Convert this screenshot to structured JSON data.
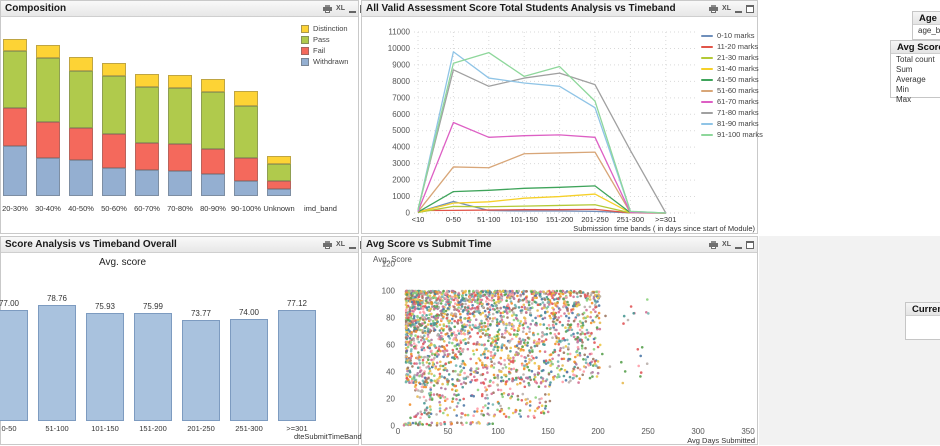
{
  "panels": {
    "composition": {
      "title": "Composition",
      "xlabel": "imd_band",
      "legend": [
        {
          "label": "Distinction",
          "color": "#fdd335"
        },
        {
          "label": "Pass",
          "color": "#b0ca4c"
        },
        {
          "label": "Fail",
          "color": "#f4695c"
        },
        {
          "label": "Withdrawn",
          "color": "#94afd1"
        }
      ]
    },
    "timeband": {
      "title": "All Valid Assessment Score Total Students Analysis vs Timeband",
      "xlabel": "Submission time bands ( in days since start of Module)"
    },
    "score_timeband": {
      "title": "Score Analysis vs Timeband Overall",
      "ylabel": "Avg. score",
      "xlabel": "dteSubmitTimeBand"
    },
    "scatter": {
      "title": "Avg Score vs Submit Time",
      "ylabel": "Avg. Score",
      "xlabel": "Avg Days Submitted"
    },
    "caption_icons": {
      "excel": "XL"
    }
  },
  "sidebar": {
    "age_band": {
      "title": "Age Band",
      "items": [
        "age_band"
      ]
    },
    "avg_score": {
      "title": "Avg Score",
      "items": [
        "Total count",
        "Sum",
        "Average",
        "Min",
        "Max"
      ]
    },
    "current_selections": {
      "title": "Current Selections"
    }
  },
  "chart_data": [
    {
      "id": "composition",
      "type": "bar",
      "stacked": true,
      "title": "Composition",
      "xlabel": "imd_band",
      "categories": [
        "20-30%",
        "30-40%",
        "40-50%",
        "50-60%",
        "60-70%",
        "70-80%",
        "80-90%",
        "90-100%",
        "Unknown"
      ],
      "series": [
        {
          "name": "Withdrawn",
          "color": "#94afd1",
          "values": [
            50,
            38,
            36,
            28,
            26,
            25,
            22,
            15,
            7
          ]
        },
        {
          "name": "Fail",
          "color": "#f4695c",
          "values": [
            38,
            36,
            32,
            34,
            27,
            27,
            25,
            23,
            8
          ]
        },
        {
          "name": "Pass",
          "color": "#b0ca4c",
          "values": [
            57,
            64,
            57,
            58,
            56,
            56,
            57,
            52,
            17
          ]
        },
        {
          "name": "Distinction",
          "color": "#fdd335",
          "values": [
            12,
            13,
            14,
            13,
            13,
            13,
            13,
            15,
            8
          ]
        }
      ],
      "value_units": "relative segment size (no value axis shown)",
      "legend_position": "top-right"
    },
    {
      "id": "timeband-lines",
      "type": "line",
      "title": "All Valid Assessment Score Total Students Analysis vs Timeband",
      "xlabel": "Submission time bands ( in days since start of Module)",
      "x": [
        "<10",
        "0-50",
        "51-100",
        "101-150",
        "151-200",
        "201-250",
        "251-300",
        ">=301"
      ],
      "ylim": [
        0,
        11000
      ],
      "ytick_step": 1000,
      "grid": true,
      "legend_position": "right",
      "series": [
        {
          "name": "0-10 marks",
          "color": "#6f8fbb",
          "values": [
            50,
            700,
            150,
            120,
            120,
            100,
            10,
            0
          ]
        },
        {
          "name": "11-20 marks",
          "color": "#e15549",
          "values": [
            150,
            160,
            180,
            200,
            200,
            220,
            10,
            0
          ]
        },
        {
          "name": "21-30 marks",
          "color": "#b3c936",
          "values": [
            30,
            400,
            380,
            420,
            460,
            500,
            10,
            0
          ]
        },
        {
          "name": "31-40 marks",
          "color": "#f6d029",
          "values": [
            50,
            600,
            680,
            900,
            1000,
            1150,
            10,
            0
          ]
        },
        {
          "name": "41-50 marks",
          "color": "#3fa45b",
          "values": [
            60,
            1300,
            1380,
            1500,
            1560,
            1650,
            15,
            0
          ]
        },
        {
          "name": "51-60 marks",
          "color": "#d8a678",
          "values": [
            80,
            2800,
            2750,
            3600,
            3650,
            3700,
            20,
            0
          ]
        },
        {
          "name": "61-70 marks",
          "color": "#dd5fc4",
          "values": [
            100,
            5500,
            4600,
            4700,
            4750,
            4600,
            30,
            0
          ]
        },
        {
          "name": "71-80 marks",
          "color": "#a0a0a0",
          "values": [
            200,
            8700,
            7700,
            8200,
            8500,
            7800,
            3800,
            0
          ]
        },
        {
          "name": "81-90 marks",
          "color": "#8fc4e6",
          "values": [
            150,
            9800,
            8200,
            7900,
            7700,
            6400,
            100,
            0
          ]
        },
        {
          "name": "91-100 marks",
          "color": "#8ed79b",
          "values": [
            200,
            9100,
            9750,
            8300,
            8900,
            6800,
            100,
            0
          ]
        }
      ]
    },
    {
      "id": "score-timeband",
      "type": "bar",
      "title": "Avg. score",
      "xlabel": "dteSubmitTimeBand",
      "categories": [
        "0-50",
        "51-100",
        "101-150",
        "151-200",
        "201-250",
        "251-300",
        ">=301"
      ],
      "values": [
        77.0,
        78.76,
        75.93,
        75.99,
        73.77,
        74.0,
        77.12
      ],
      "value_labels": [
        "77.00",
        "78.76",
        "75.93",
        "75.99",
        "73.77",
        "74.00",
        "77.12"
      ],
      "bar_color": "#a9c2de"
    },
    {
      "id": "avg-score-scatter",
      "type": "scatter",
      "title": "Avg Score vs Submit Time",
      "xlabel": "Avg Days Submitted",
      "ylabel": "Avg. Score",
      "xlim": [
        0,
        350
      ],
      "xticks": [
        0,
        50,
        100,
        150,
        200,
        250,
        300,
        350
      ],
      "ylim": [
        0,
        120
      ],
      "yticks": [
        0,
        20,
        40,
        60,
        80,
        100,
        120
      ],
      "point_palette": [
        "#4e79a7",
        "#e15759",
        "#59a14f",
        "#edc948",
        "#b07aa1",
        "#76b7b2",
        "#ff9da7",
        "#9c755f",
        "#f28e2b",
        "#8cd17d",
        "#d37295",
        "#499894",
        "#bab0ac",
        "#e7ba52"
      ],
      "generation": {
        "seed": 7,
        "groups": [
          {
            "n": 2100,
            "x_base": 8,
            "x_range": 195,
            "x_pow": 1.5,
            "y_base": 100,
            "y_range": -68,
            "y_pow": 1.6
          },
          {
            "n": 260,
            "x_base": 12,
            "x_range": 140,
            "x_pow": 1.2,
            "y_base": 6,
            "y_range": 30,
            "y_pow": 1.0
          },
          {
            "n": 55,
            "x_base": 5,
            "x_range": 90,
            "x_pow": 1.4,
            "y_base": 0.5,
            "y_range": 2.5,
            "y_pow": 1.0
          },
          {
            "n": 70,
            "x_base": 155,
            "x_range": 100,
            "x_pow": 1.6,
            "y_base": 30,
            "y_range": 65,
            "y_pow": 1.0
          }
        ]
      },
      "note": "~2500 multicolored points; dense cloud x 5-160 / y 35-100, sparse tail to x~255, row of points along y~0 for x 5-95"
    }
  ]
}
